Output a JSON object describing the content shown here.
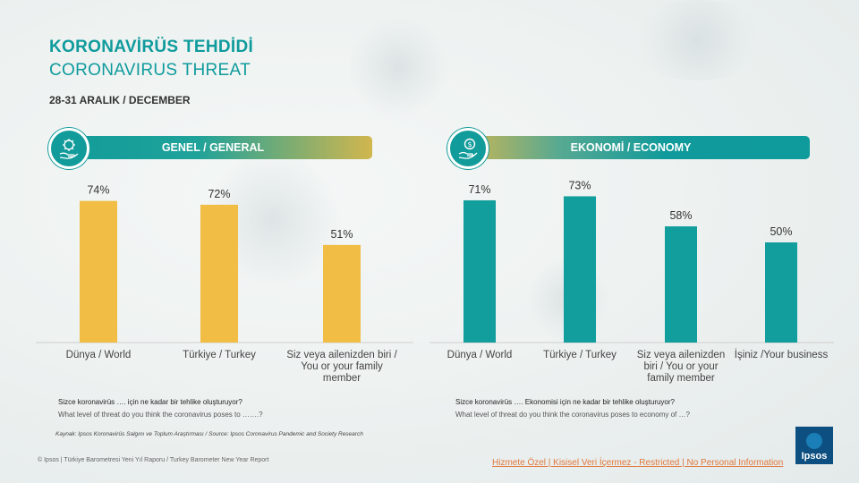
{
  "title_tr": "KORONAVİRÜS  TEHDİDİ",
  "title_en": "CORONAVIRUS  THREAT",
  "date": "28-31  ARALIK  / DECEMBER",
  "colors": {
    "accent": "#119b9a",
    "yellow": "#f1bd45",
    "teal_bar": "#119e9c"
  },
  "left_panel": {
    "banner": "GENEL / GENERAL",
    "icon": "virus-hand-icon",
    "question_tr": "Sizce koronavirüs …. için ne kadar bir tehlike oluşturuyor?",
    "question_en": "What level of threat do you think the coronavirus poses to …….?"
  },
  "right_panel": {
    "banner": "EKONOMİ / ECONOMY",
    "icon": "money-hand-icon",
    "question_tr": "Sizce koronavirüs ….  Ekonomisi için ne kadar bir tehlike oluşturuyor?",
    "question_en": "What level of threat do you think the coronavirus poses to  economy of …?"
  },
  "source": "Kaynak: Ipsos Koronavirüs Salgını ve Toplum Araştırması / Source: Ipsos Coronavirus Pandemic and Society Research",
  "footer": "© Ipsos | Türkiye Barometresi Yeni Yıl Raporu / Turkey Barometer New Year Report",
  "classification": "Hizmete Özel | Kisisel Veri İçermez - Restricted | No Personal Information",
  "logo_text": "Ipsos",
  "chart_data": [
    {
      "type": "bar",
      "categories": [
        "Dünya / World",
        "Türkiye / Turkey",
        "Siz veya ailenizden biri / You or your family member"
      ],
      "category_lines": [
        [
          "Dünya / World"
        ],
        [
          "Türkiye / Turkey"
        ],
        [
          "Siz veya ailenizden biri /",
          "You or  your family",
          "member"
        ]
      ],
      "values": [
        74,
        72,
        51
      ],
      "labels": [
        "74%",
        "72%",
        "51%"
      ],
      "color": "#f1bd45",
      "ylim": [
        0,
        100
      ]
    },
    {
      "type": "bar",
      "categories": [
        "Dünya / World",
        "Türkiye / Turkey",
        "Siz veya ailenizden biri / You or your family member",
        "İşiniz /Your business"
      ],
      "category_lines": [
        [
          "Dünya / World"
        ],
        [
          "Türkiye / Turkey"
        ],
        [
          "Siz veya ailenizden",
          "biri / You or  your",
          "family member"
        ],
        [
          "İşiniz /Your business"
        ]
      ],
      "values": [
        71,
        73,
        58,
        50
      ],
      "labels": [
        "71%",
        "73%",
        "58%",
        "50%"
      ],
      "color": "#119e9c",
      "ylim": [
        0,
        100
      ]
    }
  ]
}
